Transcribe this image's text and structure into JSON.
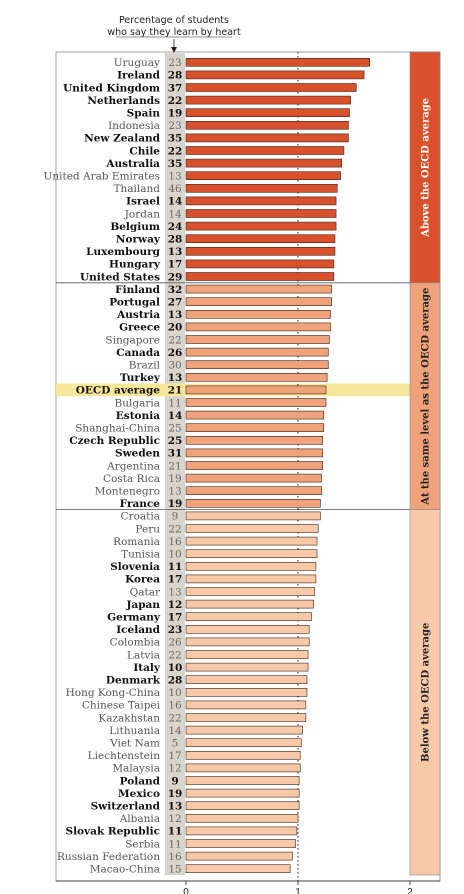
{
  "chart_data": {
    "type": "bar",
    "orientation": "horizontal",
    "header": [
      "Percentage of students",
      "who say they learn by heart"
    ],
    "xlim": [
      0,
      2
    ],
    "xticks": [
      0,
      1,
      2
    ],
    "reference_line": 1,
    "colors": {
      "above": "#d9512c",
      "same": "#f0a37a",
      "below": "#f7c9a9",
      "oecd_highlight": "#f7e79a",
      "pct_column": "#d8d5cc",
      "bar_stroke": "#3a2418"
    },
    "groups": [
      {
        "key": "above",
        "label": "Above the OECD average",
        "label_color": "#ffffff"
      },
      {
        "key": "same",
        "label": "At the same level as the OECD average",
        "label_color": "#222222"
      },
      {
        "key": "below",
        "label": "Below the OECD average",
        "label_color": "#222222"
      }
    ],
    "rows": [
      {
        "country": "Uruguay",
        "pct": 23,
        "value": 1.64,
        "group": "above",
        "bold": false
      },
      {
        "country": "Ireland",
        "pct": 28,
        "value": 1.59,
        "group": "above",
        "bold": true
      },
      {
        "country": "United Kingdom",
        "pct": 37,
        "value": 1.52,
        "group": "above",
        "bold": true
      },
      {
        "country": "Netherlands",
        "pct": 22,
        "value": 1.47,
        "group": "above",
        "bold": true
      },
      {
        "country": "Spain",
        "pct": 19,
        "value": 1.46,
        "group": "above",
        "bold": true
      },
      {
        "country": "Indonesia",
        "pct": 23,
        "value": 1.45,
        "group": "above",
        "bold": false
      },
      {
        "country": "New Zealand",
        "pct": 35,
        "value": 1.45,
        "group": "above",
        "bold": true
      },
      {
        "country": "Chile",
        "pct": 22,
        "value": 1.41,
        "group": "above",
        "bold": true
      },
      {
        "country": "Australia",
        "pct": 35,
        "value": 1.39,
        "group": "above",
        "bold": true
      },
      {
        "country": "United Arab Emirates",
        "pct": 13,
        "value": 1.38,
        "group": "above",
        "bold": false
      },
      {
        "country": "Thailand",
        "pct": 46,
        "value": 1.35,
        "group": "above",
        "bold": false
      },
      {
        "country": "Israel",
        "pct": 14,
        "value": 1.34,
        "group": "above",
        "bold": true
      },
      {
        "country": "Jordan",
        "pct": 14,
        "value": 1.34,
        "group": "above",
        "bold": false
      },
      {
        "country": "Belgium",
        "pct": 24,
        "value": 1.34,
        "group": "above",
        "bold": true
      },
      {
        "country": "Norway",
        "pct": 28,
        "value": 1.33,
        "group": "above",
        "bold": true
      },
      {
        "country": "Luxembourg",
        "pct": 13,
        "value": 1.33,
        "group": "above",
        "bold": true
      },
      {
        "country": "Hungary",
        "pct": 17,
        "value": 1.32,
        "group": "above",
        "bold": true
      },
      {
        "country": "United States",
        "pct": 29,
        "value": 1.32,
        "group": "above",
        "bold": true
      },
      {
        "country": "Finland",
        "pct": 32,
        "value": 1.3,
        "group": "same",
        "bold": true
      },
      {
        "country": "Portugal",
        "pct": 27,
        "value": 1.3,
        "group": "same",
        "bold": true
      },
      {
        "country": "Austria",
        "pct": 13,
        "value": 1.29,
        "group": "same",
        "bold": true
      },
      {
        "country": "Greece",
        "pct": 20,
        "value": 1.29,
        "group": "same",
        "bold": true
      },
      {
        "country": "Singapore",
        "pct": 22,
        "value": 1.28,
        "group": "same",
        "bold": false
      },
      {
        "country": "Canada",
        "pct": 26,
        "value": 1.27,
        "group": "same",
        "bold": true
      },
      {
        "country": "Brazil",
        "pct": 30,
        "value": 1.27,
        "group": "same",
        "bold": false
      },
      {
        "country": "Turkey",
        "pct": 13,
        "value": 1.26,
        "group": "same",
        "bold": true
      },
      {
        "country": "OECD average",
        "pct": 21,
        "value": 1.25,
        "group": "same",
        "bold": true,
        "highlight": true
      },
      {
        "country": "Bulgaria",
        "pct": 11,
        "value": 1.25,
        "group": "same",
        "bold": false
      },
      {
        "country": "Estonia",
        "pct": 14,
        "value": 1.23,
        "group": "same",
        "bold": true
      },
      {
        "country": "Shanghai-China",
        "pct": 25,
        "value": 1.23,
        "group": "same",
        "bold": false
      },
      {
        "country": "Czech Republic",
        "pct": 25,
        "value": 1.22,
        "group": "same",
        "bold": true
      },
      {
        "country": "Sweden",
        "pct": 31,
        "value": 1.22,
        "group": "same",
        "bold": true
      },
      {
        "country": "Argentina",
        "pct": 21,
        "value": 1.22,
        "group": "same",
        "bold": false
      },
      {
        "country": "Costa Rica",
        "pct": 19,
        "value": 1.21,
        "group": "same",
        "bold": false
      },
      {
        "country": "Montenegro",
        "pct": 13,
        "value": 1.21,
        "group": "same",
        "bold": false
      },
      {
        "country": "France",
        "pct": 19,
        "value": 1.2,
        "group": "same",
        "bold": true
      },
      {
        "country": "Croatia",
        "pct": 9,
        "value": 1.2,
        "group": "below",
        "bold": false
      },
      {
        "country": "Peru",
        "pct": 22,
        "value": 1.18,
        "group": "below",
        "bold": false
      },
      {
        "country": "Romania",
        "pct": 16,
        "value": 1.17,
        "group": "below",
        "bold": false
      },
      {
        "country": "Tunisia",
        "pct": 10,
        "value": 1.17,
        "group": "below",
        "bold": false
      },
      {
        "country": "Slovenia",
        "pct": 11,
        "value": 1.16,
        "group": "below",
        "bold": true
      },
      {
        "country": "Korea",
        "pct": 17,
        "value": 1.16,
        "group": "below",
        "bold": true
      },
      {
        "country": "Qatar",
        "pct": 13,
        "value": 1.15,
        "group": "below",
        "bold": false
      },
      {
        "country": "Japan",
        "pct": 12,
        "value": 1.14,
        "group": "below",
        "bold": true
      },
      {
        "country": "Germany",
        "pct": 17,
        "value": 1.12,
        "group": "below",
        "bold": true
      },
      {
        "country": "Iceland",
        "pct": 23,
        "value": 1.1,
        "group": "below",
        "bold": true
      },
      {
        "country": "Colombia",
        "pct": 26,
        "value": 1.1,
        "group": "below",
        "bold": false
      },
      {
        "country": "Latvia",
        "pct": 22,
        "value": 1.09,
        "group": "below",
        "bold": false
      },
      {
        "country": "Italy",
        "pct": 10,
        "value": 1.09,
        "group": "below",
        "bold": true
      },
      {
        "country": "Denmark",
        "pct": 28,
        "value": 1.08,
        "group": "below",
        "bold": true
      },
      {
        "country": "Hong Kong-China",
        "pct": 10,
        "value": 1.08,
        "group": "below",
        "bold": false
      },
      {
        "country": "Chinese Taipei",
        "pct": 16,
        "value": 1.07,
        "group": "below",
        "bold": false
      },
      {
        "country": "Kazakhstan",
        "pct": 22,
        "value": 1.07,
        "group": "below",
        "bold": false
      },
      {
        "country": "Lithuania",
        "pct": 14,
        "value": 1.04,
        "group": "below",
        "bold": false
      },
      {
        "country": "Viet Nam",
        "pct": 5,
        "value": 1.03,
        "group": "below",
        "bold": false
      },
      {
        "country": "Liechtenstein",
        "pct": 17,
        "value": 1.02,
        "group": "below",
        "bold": false
      },
      {
        "country": "Malaysia",
        "pct": 12,
        "value": 1.02,
        "group": "below",
        "bold": false
      },
      {
        "country": "Poland",
        "pct": 9,
        "value": 1.01,
        "group": "below",
        "bold": true
      },
      {
        "country": "Mexico",
        "pct": 19,
        "value": 1.01,
        "group": "below",
        "bold": true
      },
      {
        "country": "Switzerland",
        "pct": 13,
        "value": 1.01,
        "group": "below",
        "bold": true
      },
      {
        "country": "Albania",
        "pct": 12,
        "value": 1.0,
        "group": "below",
        "bold": false
      },
      {
        "country": "Slovak Republic",
        "pct": 11,
        "value": 0.99,
        "group": "below",
        "bold": true
      },
      {
        "country": "Serbia",
        "pct": 11,
        "value": 0.98,
        "group": "below",
        "bold": false
      },
      {
        "country": "Russian Federation",
        "pct": 16,
        "value": 0.95,
        "group": "below",
        "bold": false
      },
      {
        "country": "Macao-China",
        "pct": 15,
        "value": 0.93,
        "group": "below",
        "bold": false
      }
    ]
  }
}
